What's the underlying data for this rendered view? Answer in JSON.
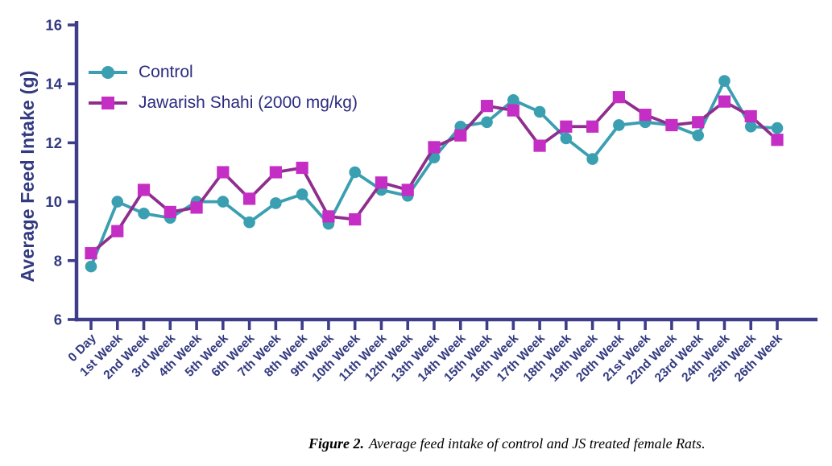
{
  "page": {
    "ylabel": "Average Feed Intake (g)",
    "caption": {
      "prefix": "Figure 2.",
      "text": "Average feed intake of control and JS treated female Rats."
    }
  },
  "legend": {
    "items": [
      {
        "label": "Control",
        "series": "control"
      },
      {
        "label": "Jawarish Shahi (2000 mg/kg)",
        "series": "js"
      }
    ]
  },
  "colors": {
    "axis": "#3d3d8a",
    "tick_labels": "#333a80",
    "axis_title": "#333a80",
    "legend_text": "#2b2b80",
    "control": "#3a9fb1",
    "js_marker": "#c52ec5",
    "js_line": "#8e2f8e",
    "caption_text": "#000000",
    "background": "#ffffff"
  },
  "chart_data": {
    "type": "line",
    "title": "",
    "xlabel": "",
    "ylabel": "Average Feed Intake (g)",
    "ylim": [
      6,
      16
    ],
    "yticks": [
      6,
      8,
      10,
      12,
      14,
      16
    ],
    "grid": false,
    "legend_position": "inside-top-left",
    "categories": [
      "0 Day",
      "1st Week",
      "2nd Week",
      "3rd Week",
      "4th Week",
      "5th Week",
      "6th Week",
      "7th Week",
      "8th Week",
      "9th Week",
      "10th Week",
      "11th Week",
      "12th Week",
      "13th Week",
      "14th Week",
      "15th Week",
      "16th Week",
      "17th Week",
      "18th Week",
      "19th Week",
      "20th Week",
      "21st Week",
      "22nd Week",
      "23rd Week",
      "24th Week",
      "25th Week",
      "26th Week"
    ],
    "series": [
      {
        "name": "Control",
        "key": "control",
        "marker": "circle",
        "line_color": "#3a9fb1",
        "marker_color": "#3a9fb1",
        "values": [
          7.8,
          10.0,
          9.6,
          9.45,
          10.0,
          10.0,
          9.3,
          9.95,
          10.25,
          9.25,
          11.0,
          10.4,
          10.2,
          11.5,
          12.55,
          12.7,
          13.45,
          13.05,
          12.15,
          11.45,
          12.6,
          12.7,
          12.6,
          12.25,
          14.1,
          12.55,
          12.5
        ]
      },
      {
        "name": "Jawarish Shahi (2000 mg/kg)",
        "key": "js",
        "marker": "square",
        "line_color": "#8e2f8e",
        "marker_color": "#c52ec5",
        "values": [
          8.25,
          9.0,
          10.4,
          9.65,
          9.8,
          11.0,
          10.1,
          11.0,
          11.15,
          9.5,
          9.4,
          10.65,
          10.4,
          11.85,
          12.25,
          13.25,
          13.1,
          11.9,
          12.55,
          12.55,
          13.55,
          12.95,
          12.6,
          12.7,
          13.4,
          12.9,
          12.1
        ]
      }
    ]
  }
}
